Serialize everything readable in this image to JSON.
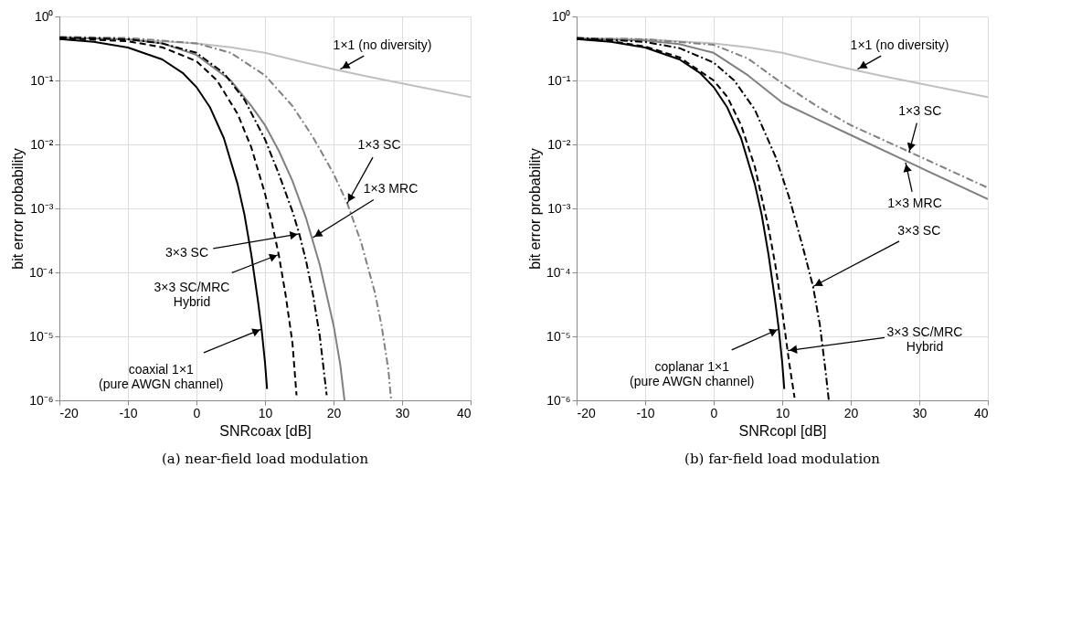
{
  "chart_data": [
    {
      "type": "line",
      "title": "(a) near-field load modulation",
      "xlabel": "SNRcoax [dB]",
      "ylabel": "bit error probability",
      "log": "y",
      "grid": true,
      "xlim": [
        -20,
        40
      ],
      "xticks": [
        -20,
        -10,
        0,
        10,
        20,
        30,
        40
      ],
      "ylim": [
        1e-06,
        1
      ],
      "yticks": [
        {
          "value": 1e-06,
          "label": "10⁻⁶"
        },
        {
          "value": 1e-05,
          "label": "10⁻⁵"
        },
        {
          "value": 0.0001,
          "label": "10⁻⁴"
        },
        {
          "value": 0.001,
          "label": "10⁻³"
        },
        {
          "value": 0.01,
          "label": "10⁻²"
        },
        {
          "value": 0.1,
          "label": "10⁻¹"
        },
        {
          "value": 1,
          "label": "10⁰"
        }
      ],
      "series": [
        {
          "color": "#c0c0c0",
          "line_style": "solid",
          "x": [
            -20,
            -10,
            0,
            5,
            10,
            15,
            20,
            25,
            30,
            35,
            40
          ],
          "values": [
            0.46,
            0.44,
            0.38,
            0.33,
            0.27,
            0.2,
            0.15,
            0.115,
            0.09,
            0.07,
            0.055
          ]
        },
        {
          "color": "#808080",
          "line_style": "dashdot",
          "x": [
            -20,
            -10,
            0,
            5,
            10,
            14,
            17,
            20,
            22,
            24,
            26,
            27,
            28,
            28.4
          ],
          "values": [
            0.48,
            0.46,
            0.38,
            0.27,
            0.12,
            0.04,
            0.013,
            0.0035,
            0.0012,
            0.0003,
            5e-05,
            1.5e-05,
            3e-06,
            1e-06
          ]
        },
        {
          "color": "#808080",
          "line_style": "solid",
          "x": [
            -20,
            -10,
            -5,
            0,
            5,
            8,
            10,
            12,
            14,
            16,
            18,
            20,
            21,
            21.6
          ],
          "values": [
            0.47,
            0.44,
            0.38,
            0.25,
            0.1,
            0.04,
            0.02,
            0.008,
            0.0027,
            0.0007,
            0.00013,
            1.5e-05,
            3.5e-06,
            1e-06
          ]
        },
        {
          "color": "#000000",
          "line_style": "dashdot",
          "x": [
            -20,
            -10,
            -5,
            0,
            4,
            7,
            10,
            12,
            14,
            15,
            16,
            17,
            18,
            19
          ],
          "values": [
            0.47,
            0.44,
            0.38,
            0.27,
            0.13,
            0.05,
            0.012,
            0.0035,
            0.0009,
            0.0004,
            0.00015,
            4.5e-05,
            1e-05,
            1.2e-06
          ]
        },
        {
          "color": "#000000",
          "line_style": "dashed",
          "x": [
            -20,
            -10,
            -5,
            0,
            3,
            6,
            8,
            10,
            11,
            12,
            13,
            14,
            14.6
          ],
          "values": [
            0.46,
            0.41,
            0.33,
            0.2,
            0.1,
            0.03,
            0.009,
            0.0017,
            0.0006,
            0.00019,
            4.5e-05,
            8e-06,
            1.2e-06
          ]
        },
        {
          "color": "#000000",
          "line_style": "solid",
          "x": [
            -20,
            -15,
            -10,
            -5,
            -2,
            0,
            2,
            4,
            6,
            7,
            8,
            9,
            9.5,
            10,
            10.3
          ],
          "values": [
            0.444,
            0.4,
            0.327,
            0.213,
            0.131,
            0.0786,
            0.0375,
            0.0125,
            0.0024,
            0.0008,
            0.00019,
            3.4e-05,
            1.3e-05,
            3.9e-06,
            1.5e-06
          ]
        }
      ],
      "annotations": [
        {
          "text": "1×1 (no diversity)",
          "x": 21,
          "y": 0.15
        },
        {
          "text": "1×3 SC",
          "x": 22,
          "y": 0.0012
        },
        {
          "text": "1×3 MRC",
          "x": 17,
          "y": 0.00035
        },
        {
          "text": "3×3 SC",
          "x": 15,
          "y": 0.0004
        },
        {
          "text": "3×3 SC/MRC\nHybrid",
          "x": 12,
          "y": 0.00019
        },
        {
          "text": "coaxial 1×1\n(pure AWGN channel)",
          "x": 9.5,
          "y": 1.3e-05
        }
      ]
    },
    {
      "type": "line",
      "title": "(b) far-field load modulation",
      "xlabel": "SNRcopl [dB]",
      "ylabel": "bit error probability",
      "log": "y",
      "grid": true,
      "xlim": [
        -20,
        40
      ],
      "xticks": [
        -20,
        -10,
        0,
        10,
        20,
        30,
        40
      ],
      "ylim": [
        1e-06,
        1
      ],
      "yticks": [
        {
          "value": 1e-06,
          "label": "10⁻⁶"
        },
        {
          "value": 1e-05,
          "label": "10⁻⁵"
        },
        {
          "value": 0.0001,
          "label": "10⁻⁴"
        },
        {
          "value": 0.001,
          "label": "10⁻³"
        },
        {
          "value": 0.01,
          "label": "10⁻²"
        },
        {
          "value": 0.1,
          "label": "10⁻¹"
        },
        {
          "value": 1,
          "label": "10⁰"
        }
      ],
      "series": [
        {
          "color": "#c0c0c0",
          "line_style": "solid",
          "x": [
            -20,
            -10,
            0,
            5,
            10,
            15,
            20,
            25,
            30,
            35,
            40
          ],
          "values": [
            0.46,
            0.44,
            0.38,
            0.33,
            0.27,
            0.2,
            0.15,
            0.115,
            0.09,
            0.07,
            0.055
          ]
        },
        {
          "color": "#808080",
          "line_style": "dashdot",
          "x": [
            -20,
            -10,
            0,
            5,
            10,
            15,
            20,
            30,
            40
          ],
          "values": [
            0.46,
            0.44,
            0.36,
            0.22,
            0.09,
            0.04,
            0.02,
            0.0065,
            0.0021
          ]
        },
        {
          "color": "#808080",
          "line_style": "solid",
          "x": [
            -20,
            -10,
            -5,
            0,
            5,
            10,
            15,
            20,
            30,
            40
          ],
          "values": [
            0.45,
            0.42,
            0.37,
            0.27,
            0.12,
            0.045,
            0.025,
            0.014,
            0.0044,
            0.0014
          ]
        },
        {
          "color": "#000000",
          "line_style": "dashdot",
          "x": [
            -20,
            -10,
            -5,
            0,
            3,
            6,
            9,
            11,
            13,
            14.5,
            15.5,
            16.3,
            16.8
          ],
          "values": [
            0.46,
            0.4,
            0.32,
            0.19,
            0.1,
            0.035,
            0.0065,
            0.0015,
            0.00025,
            6e-05,
            1.5e-05,
            3e-06,
            1e-06
          ]
        },
        {
          "color": "#000000",
          "line_style": "dashed",
          "x": [
            -20,
            -15,
            -10,
            -5,
            0,
            2,
            4,
            6,
            8,
            9,
            10,
            11,
            11.8
          ],
          "values": [
            0.45,
            0.41,
            0.34,
            0.23,
            0.1,
            0.055,
            0.02,
            0.0045,
            0.0005,
            0.00013,
            2.5e-05,
            4e-06,
            1.1e-06
          ]
        },
        {
          "color": "#000000",
          "line_style": "solid",
          "x": [
            -20,
            -15,
            -10,
            -5,
            -2,
            0,
            2,
            4,
            6,
            7,
            8,
            9,
            9.5,
            10,
            10.3
          ],
          "values": [
            0.444,
            0.4,
            0.327,
            0.213,
            0.131,
            0.0786,
            0.0375,
            0.0125,
            0.0024,
            0.0008,
            0.00019,
            3.4e-05,
            1.3e-05,
            3.9e-06,
            1.5e-06
          ]
        }
      ],
      "annotations": [
        {
          "text": "1×1 (no diversity)",
          "x": 21,
          "y": 0.15
        },
        {
          "text": "1×3 SC",
          "x": 28.5,
          "y": 0.0075
        },
        {
          "text": "1×3 MRC",
          "x": 28,
          "y": 0.0052
        },
        {
          "text": "3×3 SC",
          "x": 14.5,
          "y": 6e-05
        },
        {
          "text": "3×3 SC/MRC\nHybrid",
          "x": 10.8,
          "y": 6e-06
        },
        {
          "text": "coplanar 1×1\n(pure AWGN channel)",
          "x": 9.5,
          "y": 1.3e-05
        }
      ]
    }
  ]
}
